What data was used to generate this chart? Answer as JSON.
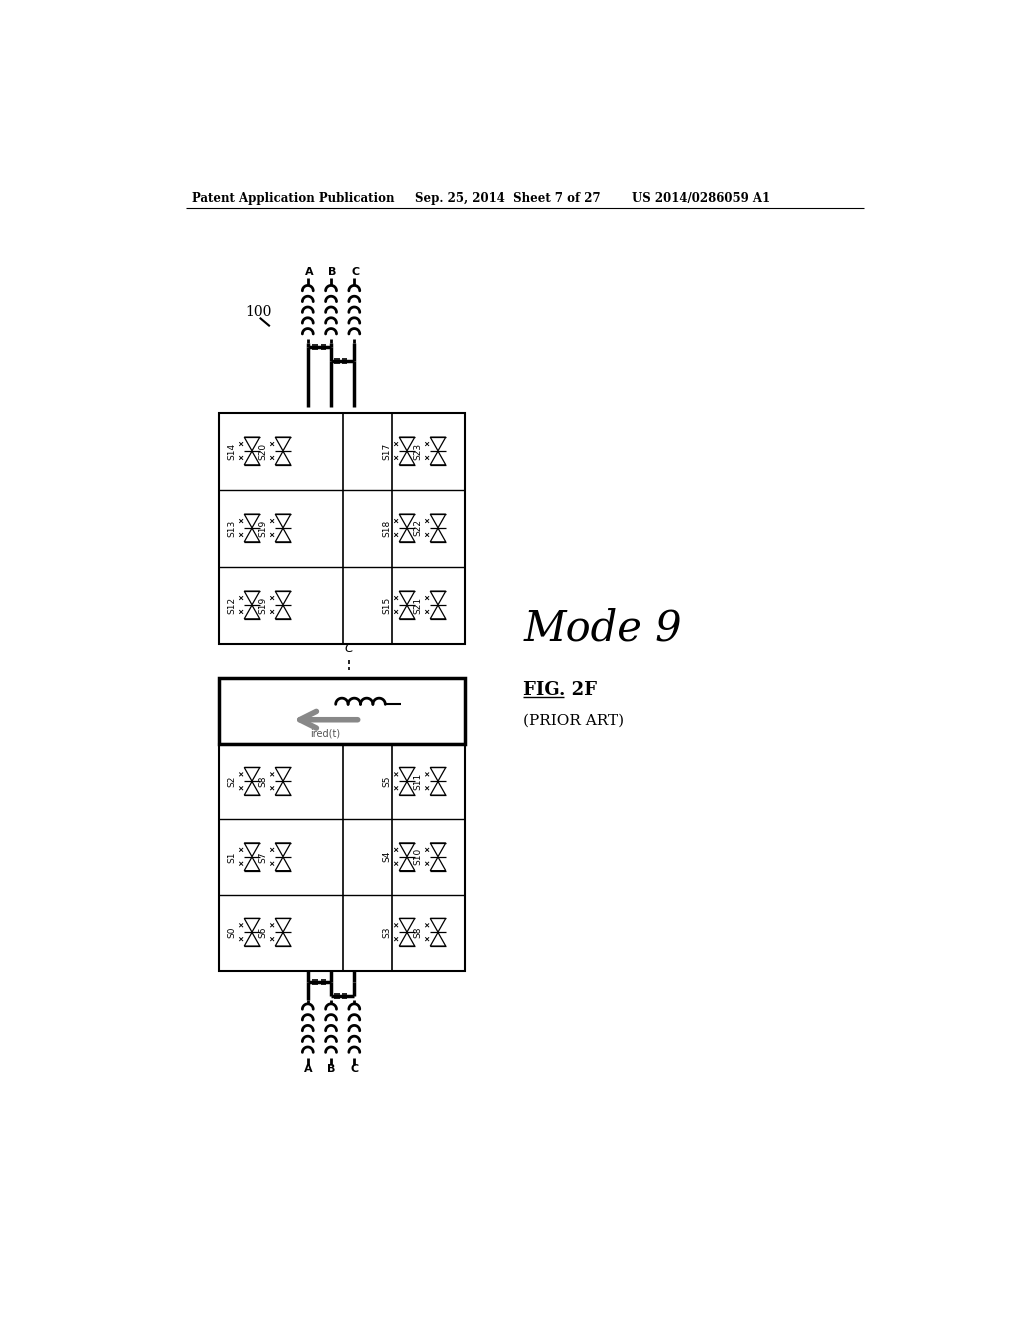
{
  "bg_color": "#f5f5f5",
  "header_left": "Patent Application Publication",
  "header_mid": "Sep. 25, 2014  Sheet 7 of 27",
  "header_right": "US 2014/0286059 A1",
  "fig_label": "FIG. 2F",
  "fig_sub": "(PRIOR ART)",
  "mode_label": "Mode 9",
  "ref_num": "100",
  "page_bg": "#ffffff"
}
